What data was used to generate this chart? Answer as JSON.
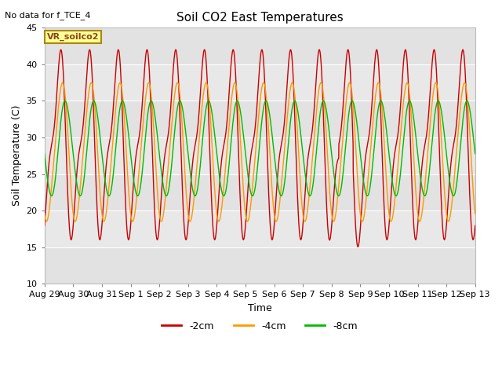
{
  "title": "Soil CO2 East Temperatures",
  "no_data_label": "No data for f_TCE_4",
  "vr_label": "VR_soilco2",
  "xlabel": "Time",
  "ylabel": "Soil Temperature (C)",
  "ylim": [
    10,
    45
  ],
  "yticks": [
    10,
    15,
    20,
    25,
    30,
    35,
    40,
    45
  ],
  "x_labels": [
    "Aug 29",
    "Aug 30",
    "Aug 31",
    "Sep 1",
    "Sep 2",
    "Sep 3",
    "Sep 4",
    "Sep 5",
    "Sep 6",
    "Sep 7",
    "Sep 8",
    "Sep 9",
    "Sep 10",
    "Sep 11",
    "Sep 12",
    "Sep 13"
  ],
  "colors": {
    "-2cm": "#cc0000",
    "-4cm": "#ff9900",
    "-8cm": "#00bb00"
  },
  "legend_entries": [
    "-2cm",
    "-4cm",
    "-8cm"
  ],
  "plot_bg_light": "#e8e8e8",
  "plot_bg_dark": "#d4d4d4",
  "fig_bg": "#ffffff"
}
